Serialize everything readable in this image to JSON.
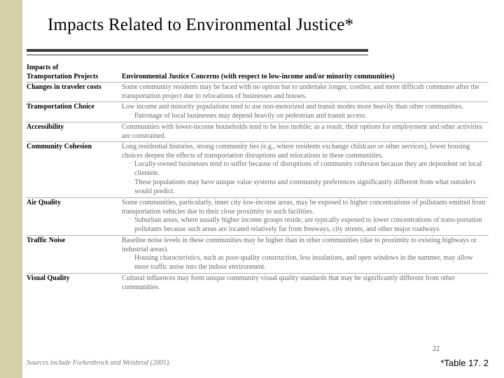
{
  "colors": {
    "stripe": "#d6d0a8",
    "rule": "#3a3a3a",
    "body_text": "#6a6a6a",
    "header_text": "#000000",
    "row_border": "#b0b0b0"
  },
  "title": "Impacts Related to Environmental Justice*",
  "header_left_line1": "Impacts of",
  "header_left_line2": "Transportation Projects",
  "header_right": "Environmental Justice Concerns (with respect to low-income and/or minority communities)",
  "rows": [
    {
      "label": "Changes in traveler costs",
      "text": "Some community residents may be faced with no option but to undertake longer, costlier, and more difficult commutes after the transportation project due to relocations of businesses and houses."
    },
    {
      "label": "Transportation Choice",
      "text": "Low income and minority populations tend to use non-motorized and transit modes more heavily than other communities.",
      "bullets": [
        "Patronage of local businesses may depend heavily on pedestrian and transit access."
      ]
    },
    {
      "label": "Accessibility",
      "text": "Communities with lower-income households tend to be less mobile; as a result, their options for employment and other activities are constrained."
    },
    {
      "label": "Community Cohesion",
      "text": "Long residential histories, strong community ties (e.g., where residents exchange childcare or other services), fewer housing choices deepen the effects of transportation disruptions and relocations in these communities.",
      "bullets": [
        "Locally-owned businesses tend to suffer because of disruptions of community cohesion because they are dependent on local clientele.",
        "These populations may have unique value systems and community preferences significantly different from what outsiders would predict."
      ]
    },
    {
      "label": "Air Quality",
      "text": "Some communities, particularly, inner city low-income areas, may be exposed to higher concentrations of pollutants emitted from transportation vehicles due to their close proximity to such facilities.",
      "bullets": [
        "Suburban areas, where usually higher income groups reside, are typically exposed to lower concentrations of trans-portation pollutants because such areas are located relatively far from freeways, city streets, and other major roadways."
      ]
    },
    {
      "label": "Traffic Noise",
      "text": "Baseline noise levels in these communities may be higher than in other communities (due to proximity to existing highways or industrial areas).",
      "bullets": [
        "Housing characteristics, such as poor-quality construction, less insulations, and open windows in the summer, may allow more traffic noise into the indoor environment."
      ]
    },
    {
      "label": "Visual Quality",
      "text": "Cultural influences may form unique community visual quality standards that may be significantly different from other communities."
    }
  ],
  "sources": "Sources include Forkenbrock and Weisbrod (2001).",
  "page_num": "22",
  "table_ref": "*Table 17. 2"
}
